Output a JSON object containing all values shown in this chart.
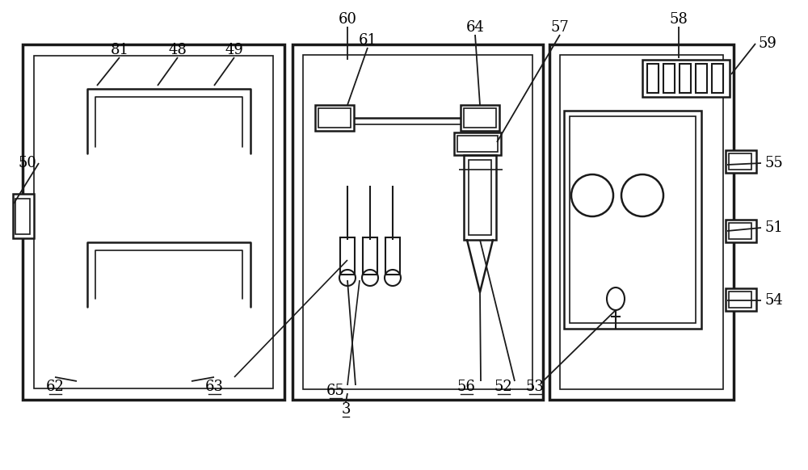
{
  "bg_color": "#ffffff",
  "line_color": "#1a1a1a",
  "lw_thick": 2.5,
  "lw_med": 1.8,
  "lw_thin": 1.2,
  "label_fs": 13
}
